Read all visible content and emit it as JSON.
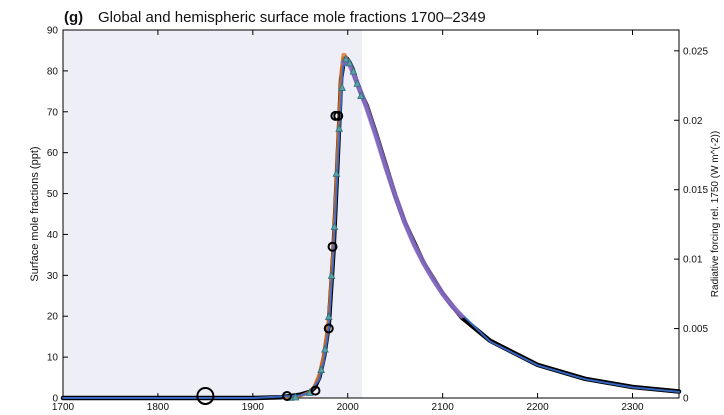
{
  "chart_data": {
    "type": "line",
    "panel_label": "(g)",
    "title": "Global and hemispheric surface mole fractions 1700–2349",
    "ylabel": "Surface mole fractions (ppt)",
    "y2label": "Radiative forcing rel. 1750 (W m^(-2))",
    "xlim": [
      1700,
      2349
    ],
    "ylim": [
      0,
      90
    ],
    "y2lim": [
      0,
      0.0265
    ],
    "x_ticks": [
      1700,
      1800,
      1900,
      2000,
      2100,
      2200,
      2300
    ],
    "y_ticks": [
      0,
      10,
      20,
      30,
      40,
      50,
      60,
      70,
      80,
      90
    ],
    "y2_ticks": [
      0,
      0.005,
      0.01,
      0.015,
      0.02,
      0.025
    ],
    "y2_tick_labels": [
      "0",
      "0.005",
      "0.01",
      "0.015",
      "0.02",
      "0.025"
    ],
    "historical_shading": {
      "x_start": 1700,
      "x_end": 2015,
      "color": "#eeeef7"
    },
    "series": [
      {
        "color": "#000000",
        "x": [
          1700,
          1900,
          1930,
          1950,
          1960,
          1965,
          1970,
          1975,
          1980,
          1985,
          1990,
          1993,
          1996,
          1999,
          2002,
          2005,
          2010,
          2015,
          2020,
          2030,
          2040,
          2050,
          2060,
          2080,
          2100,
          2120,
          2150,
          2200,
          2250,
          2300,
          2349
        ],
        "y": [
          0,
          0,
          0.2,
          0.8,
          1.5,
          2.5,
          5,
          10,
          18,
          36,
          62,
          78,
          83,
          83,
          82,
          80.5,
          77,
          74,
          71.5,
          64.5,
          57,
          49.5,
          43,
          33,
          25.5,
          19.7,
          14,
          8.1,
          4.7,
          2.7,
          1.6
        ]
      },
      {
        "color": "#e6792e",
        "x": [
          1935,
          1950,
          1960,
          1965,
          1970,
          1975,
          1980,
          1985,
          1990,
          1993,
          1995,
          1997,
          2000,
          2003
        ],
        "y": [
          0,
          0.5,
          1.5,
          3,
          6,
          11,
          20,
          38,
          65,
          80,
          84,
          84,
          82.5,
          81
        ]
      },
      {
        "color": "#3c6fd0",
        "x": [
          1700,
          1900,
          1950,
          1960,
          1970,
          1975,
          1980,
          1985,
          1990,
          1995,
          2000,
          2005,
          2010,
          2020,
          2040,
          2060,
          2080,
          2100,
          2150,
          2200,
          2250,
          2300,
          2349
        ],
        "y": [
          0,
          0,
          0.6,
          1.3,
          4.5,
          9,
          17,
          35,
          60,
          81,
          82,
          80,
          77,
          71,
          56.5,
          42.5,
          32.5,
          25,
          13.8,
          8,
          4.6,
          2.6,
          1.5
        ]
      },
      {
        "color": "#8e6fc8",
        "x": [
          1995,
          2000,
          2005,
          2010,
          2015,
          2020,
          2030,
          2040,
          2050,
          2060,
          2070,
          2080,
          2090,
          2100,
          2110,
          2120
        ],
        "y": [
          82,
          82.5,
          80,
          77,
          74,
          71,
          64,
          56.5,
          49.5,
          43,
          37.5,
          33,
          29,
          25.5,
          22.5,
          20
        ]
      }
    ],
    "observation_points": {
      "name": "",
      "x": [
        1850,
        1936,
        1966,
        1980,
        1984,
        1987,
        1990
      ],
      "y": [
        0.5,
        0.5,
        1.8,
        17,
        37,
        69,
        69
      ]
    },
    "triangle_markers": {
      "x": [
        1940,
        1945,
        1960,
        1972,
        1976,
        1980,
        1983,
        1986,
        1988,
        1991,
        1994,
        1998,
        2002,
        2006,
        2010,
        2014
      ],
      "y": [
        0.2,
        0.3,
        1.4,
        7,
        12,
        20,
        30,
        42,
        55,
        66,
        76,
        83,
        82,
        80,
        77,
        74
      ]
    },
    "grid": false
  }
}
